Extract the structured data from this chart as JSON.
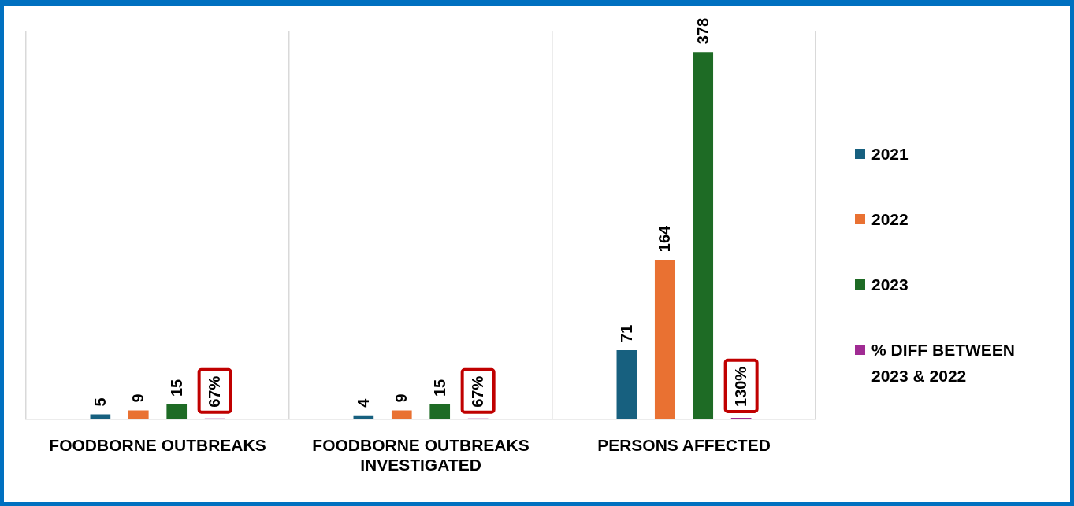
{
  "chart_data": {
    "type": "bar",
    "categories": [
      "FOODBORNE OUTBREAKS",
      "FOODBORNE OUTBREAKS INVESTIGATED",
      "PERSONS AFFECTED"
    ],
    "series": [
      {
        "name": "2021",
        "color": "#17607f",
        "values": [
          5,
          4,
          71
        ],
        "value_labels": [
          "5",
          "4",
          "71"
        ]
      },
      {
        "name": "2022",
        "color": "#e97132",
        "values": [
          9,
          9,
          164
        ],
        "value_labels": [
          "9",
          "9",
          "164"
        ]
      },
      {
        "name": "2023",
        "color": "#1e6b25",
        "values": [
          15,
          15,
          378
        ],
        "value_labels": [
          "15",
          "15",
          "378"
        ]
      },
      {
        "name": "% DIFF BETWEEN 2023 & 2022",
        "color": "#a02b93",
        "values": [
          0.67,
          0.67,
          1.3
        ],
        "value_labels": [
          "67%",
          "67%",
          "130%"
        ]
      }
    ],
    "ylim": [
      0,
      400
    ],
    "grid": "x",
    "legend": "right"
  }
}
